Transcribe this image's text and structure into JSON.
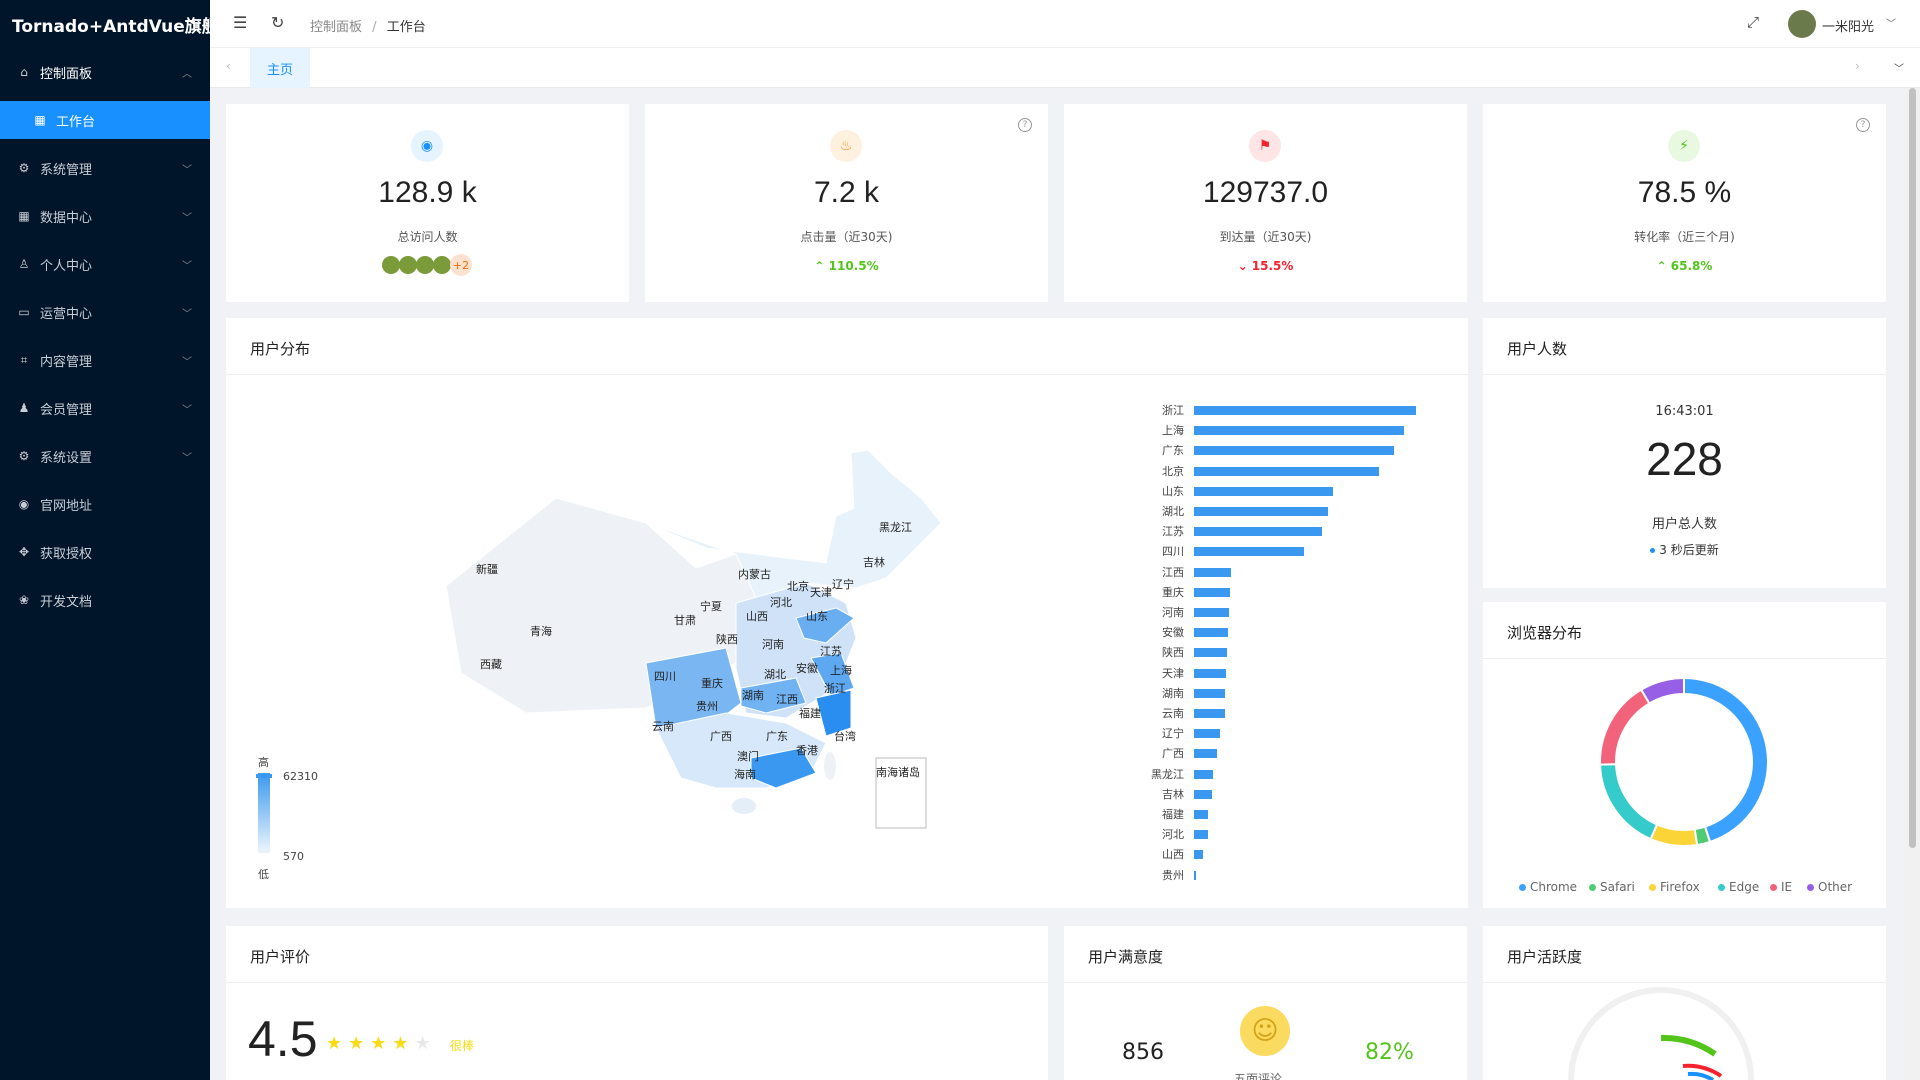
{
  "app": {
    "title": "Tornado+AntdVue旗舰"
  },
  "sidebar": {
    "items": [
      {
        "label": "控制面板",
        "icon": "home-icon"
      },
      {
        "label": "工作台",
        "icon": "dashboard-icon"
      },
      {
        "label": "系统管理",
        "icon": "gear-icon"
      },
      {
        "label": "数据中心",
        "icon": "grid-icon"
      },
      {
        "label": "个人中心",
        "icon": "user-icon"
      },
      {
        "label": "运营中心",
        "icon": "monitor-icon"
      },
      {
        "label": "内容管理",
        "icon": "scan-icon"
      },
      {
        "label": "会员管理",
        "icon": "team-icon"
      },
      {
        "label": "系统设置",
        "icon": "gear-icon"
      },
      {
        "label": "官网地址",
        "icon": "global-icon"
      },
      {
        "label": "获取授权",
        "icon": "key-icon"
      },
      {
        "label": "开发文档",
        "icon": "book-icon"
      }
    ]
  },
  "header": {
    "breadcrumb": [
      "控制面板",
      "工作台"
    ],
    "username": "一米阳光"
  },
  "tabs": [
    {
      "label": "主页"
    }
  ],
  "stats": [
    {
      "value": "128.9 k",
      "label": "总访问人数",
      "icon": "eye-icon",
      "color": "#1890ff",
      "extra": "+2"
    },
    {
      "value": "7.2 k",
      "label": "点击量（近30天)",
      "icon": "fire-icon",
      "color": "#fa8c16",
      "trend": "110.5%",
      "direction": "up"
    },
    {
      "value": "129737.0",
      "label": "到达量（近30天)",
      "icon": "flag-icon",
      "color": "#f5222d",
      "trend": "15.5%",
      "direction": "down"
    },
    {
      "value": "78.5 %",
      "label": "转化率（近三个月)",
      "icon": "thunder-icon",
      "color": "#52c41a",
      "trend": "65.8%",
      "direction": "up"
    }
  ],
  "user_distribution": {
    "title": "用户分布",
    "legend_high": "高",
    "legend_low": "低",
    "legend_max": "62310",
    "legend_min": "570",
    "map_provinces": [
      "黑龙江",
      "吉林",
      "辽宁",
      "内蒙古",
      "北京",
      "天津",
      "河北",
      "山西",
      "山东",
      "宁夏",
      "甘肃",
      "新疆",
      "青海",
      "陕西",
      "河南",
      "江苏",
      "上海",
      "安徽",
      "浙江",
      "湖北",
      "四川",
      "重庆",
      "西藏",
      "贵州",
      "湖南",
      "江西",
      "福建",
      "云南",
      "广西",
      "广东",
      "香港",
      "台湾",
      "澳门",
      "海南",
      "南海诸岛"
    ]
  },
  "chart_data": {
    "type": "bar",
    "categories": [
      "浙江",
      "上海",
      "广东",
      "北京",
      "山东",
      "湖北",
      "江苏",
      "四川",
      "江西",
      "重庆",
      "河南",
      "安徽",
      "陕西",
      "天津",
      "湖南",
      "云南",
      "辽宁",
      "广西",
      "黑龙江",
      "吉林",
      "福建",
      "河北",
      "山西",
      "贵州"
    ],
    "values": [
      62300,
      59000,
      56000,
      52000,
      39000,
      37500,
      36000,
      31000,
      10300,
      10000,
      9800,
      9500,
      9200,
      8900,
      8800,
      8600,
      7300,
      6500,
      5300,
      5100,
      4000,
      3800,
      2400,
      570
    ],
    "title": "",
    "xlabel": "",
    "ylabel": ""
  },
  "user_count": {
    "title": "用户人数",
    "time": "16:43:01",
    "count": "228",
    "label": "用户总人数",
    "refresh": "3 秒后更新"
  },
  "browser": {
    "title": "浏览器分布",
    "slices": [
      {
        "name": "Chrome",
        "value": 45,
        "color": "#3ba1ff"
      },
      {
        "name": "Safari",
        "value": 2.5,
        "color": "#4ecb73"
      },
      {
        "name": "Firefox",
        "value": 9,
        "color": "#fbd437"
      },
      {
        "name": "Edge",
        "value": 18,
        "color": "#36cbcb"
      },
      {
        "name": "IE",
        "value": 17,
        "color": "#f2637b"
      },
      {
        "name": "Other",
        "value": 8.5,
        "color": "#975fe5"
      }
    ]
  },
  "rating": {
    "title": "用户评价",
    "score": "4.5",
    "text": "很棒",
    "stars": 4
  },
  "satisfaction": {
    "title": "用户满意度",
    "count": "856",
    "percent": "82%",
    "label": "五面评论"
  },
  "activity": {
    "title": "用户活跃度"
  }
}
